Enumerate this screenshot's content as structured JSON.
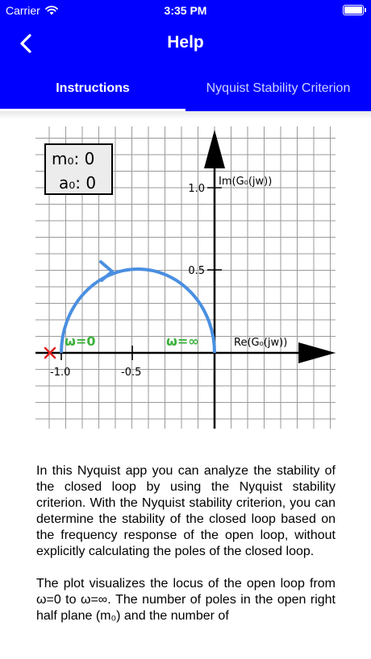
{
  "status_bar": {
    "carrier": "Carrier",
    "time": "3:35 PM"
  },
  "nav": {
    "title": "Help"
  },
  "tabs": [
    {
      "label": "Instructions",
      "active": true
    },
    {
      "label": "Nyquist Stability Criterion",
      "active": false
    }
  ],
  "plot": {
    "legend": {
      "m0": "m₀: 0",
      "a0": "a₀: 0"
    },
    "im_label": "Im(G₀(jw))",
    "re_label": "Re(G₀(jw))",
    "y_ticks": [
      "1.0",
      "0.5"
    ],
    "x_ticks": [
      "-1.0",
      "-0.5"
    ],
    "omega_start": "ω=0",
    "omega_end": "ω=∞",
    "colors": {
      "curve": "#4a8fe0",
      "omega": "#3db13d",
      "marker": "#e02020",
      "axes": "#000000"
    }
  },
  "text": {
    "p1": "In this Nyquist app you can analyze the stability of the closed loop by using the Nyquist stability criterion. With the Nyquist stability criterion, you can determine the stability of the closed loop based on the frequency response of the open loop, without explicitly calculating the poles of the closed loop.",
    "p2": "The plot visualizes the locus of the open loop from ω=0 to ω=∞. The number of poles in the open right half plane (m₀) and the number of"
  }
}
